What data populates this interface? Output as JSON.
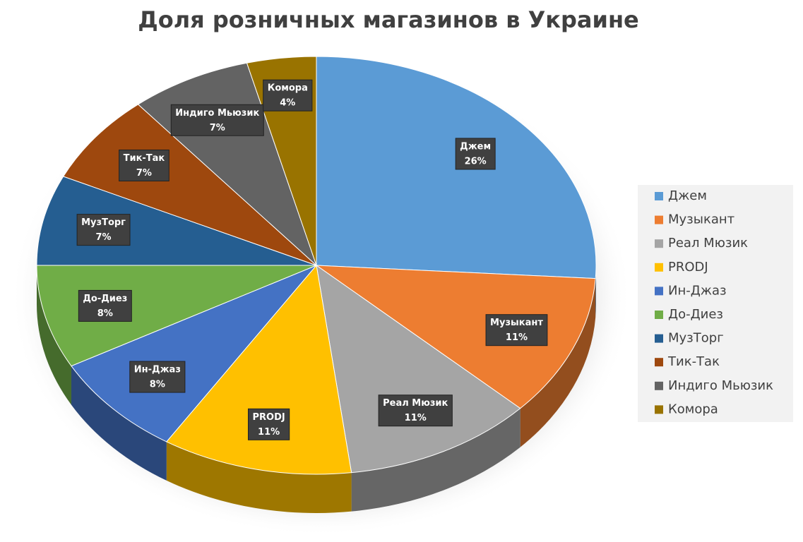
{
  "chart_data": {
    "type": "pie3d",
    "title": "Доля розничных магазинов в Украине",
    "categories": [
      "Джем",
      "Музыкант",
      "Реал Мюзик",
      "PRODJ",
      "Ин-Джаз",
      "До-Диез",
      "МузТорг",
      "Тик-Так",
      "Индиго Мьюзик",
      "Комора"
    ],
    "values": [
      26,
      11,
      11,
      11,
      8,
      8,
      7,
      7,
      7,
      4
    ],
    "value_labels": [
      "26%",
      "11%",
      "11%",
      "11%",
      "8%",
      "8%",
      "7%",
      "7%",
      "7%",
      "4%"
    ],
    "colors": [
      "#5b9bd5",
      "#ed7d31",
      "#a5a5a5",
      "#ffc000",
      "#4472c4",
      "#70ad47",
      "#255e91",
      "#9e480e",
      "#636363",
      "#997300"
    ],
    "legend": "right"
  }
}
